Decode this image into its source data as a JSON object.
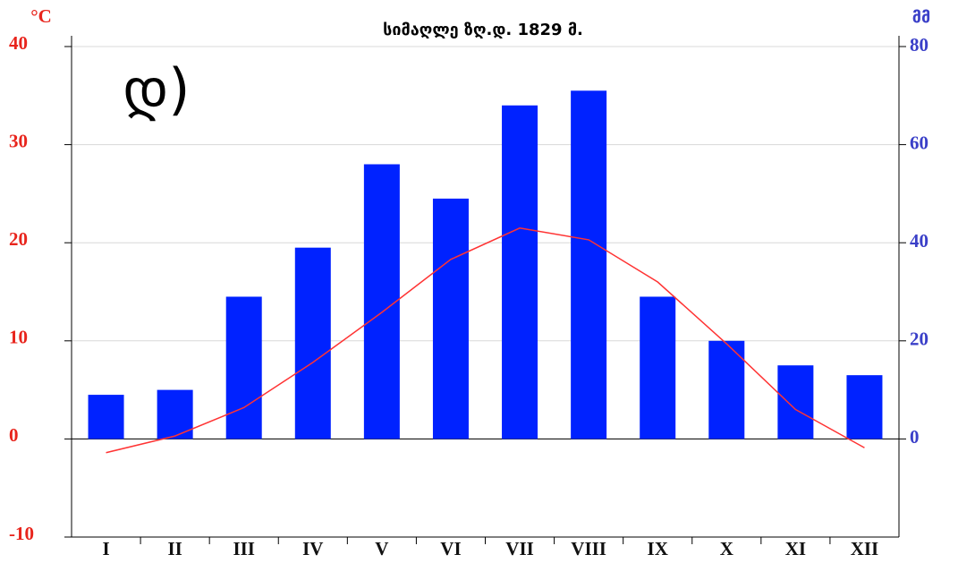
{
  "chart_data": {
    "type": "bar",
    "title": "სიმაღლე ზღ.დ. 1829 მ.",
    "panel_label": "დ)",
    "y_label": "°C",
    "y2_label": "მმ",
    "categories": [
      "I",
      "II",
      "III",
      "IV",
      "V",
      "VI",
      "VII",
      "VIII",
      "IX",
      "X",
      "XI",
      "XII"
    ],
    "series": [
      {
        "type": "bar",
        "axis": "y2",
        "color": "#0022ff",
        "values": [
          9,
          10,
          29,
          39,
          56,
          49,
          68,
          71,
          29,
          20,
          15,
          13
        ]
      },
      {
        "type": "line",
        "axis": "y",
        "color": "#ff3333",
        "values": [
          -1.4,
          0.3,
          3.2,
          7.8,
          12.9,
          18.3,
          21.5,
          20.3,
          16,
          9.7,
          3,
          -0.9
        ]
      }
    ],
    "ylim": [
      -10,
      40
    ],
    "yticks": [
      -10,
      0,
      10,
      20,
      30,
      40
    ],
    "y2lim": [
      -20,
      80
    ],
    "y2ticks": [
      0,
      20,
      40,
      60,
      80
    ],
    "grid": true
  }
}
